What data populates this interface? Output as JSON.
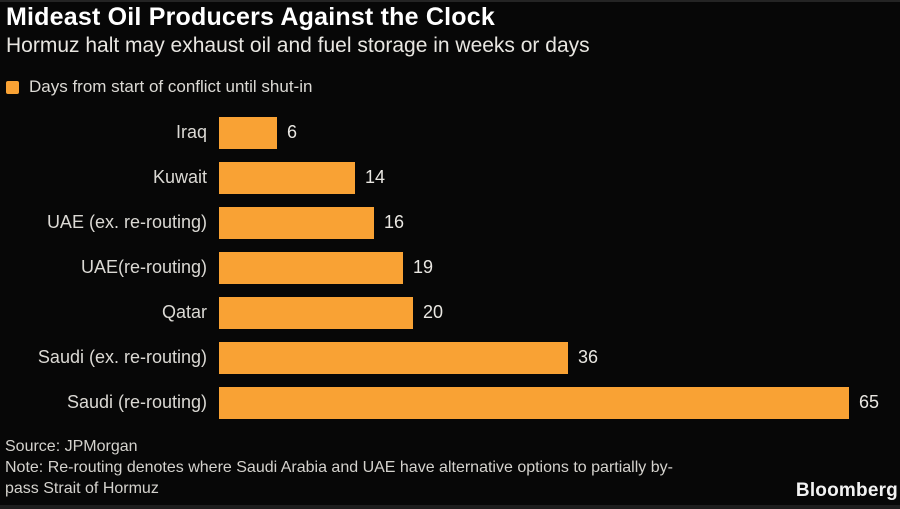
{
  "header": {
    "title": "Mideast Oil Producers Against the Clock",
    "subtitle": "Hormuz halt may exhaust oil and fuel storage in weeks or days"
  },
  "legend": {
    "label": "Days from start of conflict until shut-in",
    "swatch_color": "#f9a234"
  },
  "chart_data": {
    "type": "bar",
    "orientation": "horizontal",
    "title": "Mideast Oil Producers Against the Clock",
    "subtitle": "Hormuz halt may exhaust oil and fuel storage in weeks or days",
    "series_label": "Days from start of conflict until shut-in",
    "categories": [
      "Iraq",
      "Kuwait",
      "UAE (ex. re-routing)",
      "UAE(re-routing)",
      "Qatar",
      "Saudi (ex. re-routing)",
      "Saudi (re-routing)"
    ],
    "values": [
      6,
      14,
      16,
      19,
      20,
      36,
      65
    ],
    "unit": "days",
    "xlim": [
      0,
      65
    ],
    "grid": false,
    "value_labels_shown": true,
    "bar_color": "#f9a234",
    "background_color": "#070707",
    "legend_position": "top-left"
  },
  "footer": {
    "source": "Source: JPMorgan",
    "note_line1": "Note: Re-routing denotes where Saudi Arabia and UAE have alternative options to partially by-",
    "note_line2": "pass Strait of Hormuz",
    "brand": "Bloomberg"
  }
}
